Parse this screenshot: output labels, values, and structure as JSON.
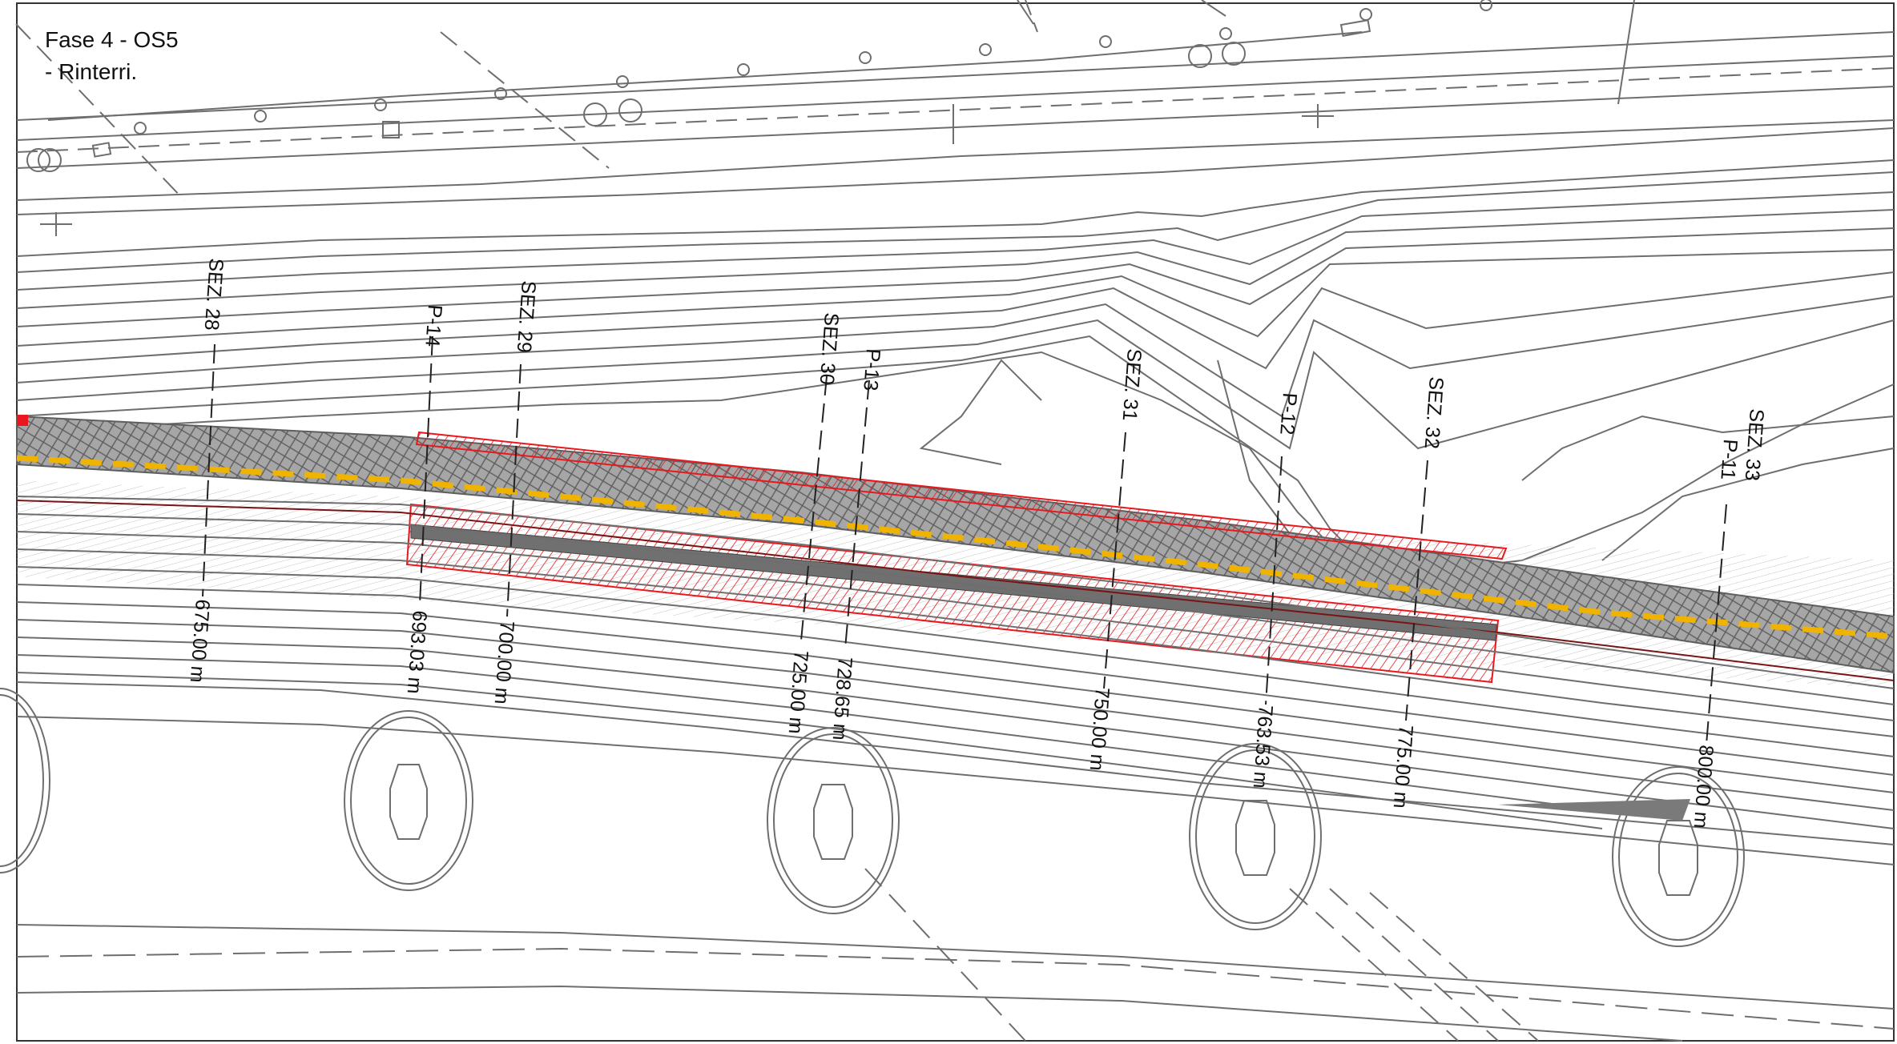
{
  "title": {
    "line1": "Fase 4 - OS5",
    "line2": "- Rinterri."
  },
  "colors": {
    "contour": "#6e6e6e",
    "frame": "#333333",
    "corridor_fill": "#a9a9a9",
    "centerline": "#f0b400",
    "hatch_red": "#e8181e",
    "dark_axis": "#7a1414"
  },
  "sections": [
    {
      "sez": "SEZ. 28",
      "p": "",
      "chainage": "675.00 m"
    },
    {
      "sez": "",
      "p": "P-14",
      "chainage": "693.03 m"
    },
    {
      "sez": "SEZ. 29",
      "p": "",
      "chainage": "700.00 m"
    },
    {
      "sez": "SEZ. 30",
      "p": "",
      "chainage": "725.00 m"
    },
    {
      "sez": "",
      "p": "P-13",
      "chainage": "728.65 m"
    },
    {
      "sez": "SEZ. 31",
      "p": "",
      "chainage": "750.00 m"
    },
    {
      "sez": "",
      "p": "P-12",
      "chainage": "763.53 m"
    },
    {
      "sez": "SEZ. 32",
      "p": "",
      "chainage": "775.00 m"
    },
    {
      "sez": "SEZ. 33",
      "p": "P-11",
      "chainage": "800.00 m"
    }
  ]
}
